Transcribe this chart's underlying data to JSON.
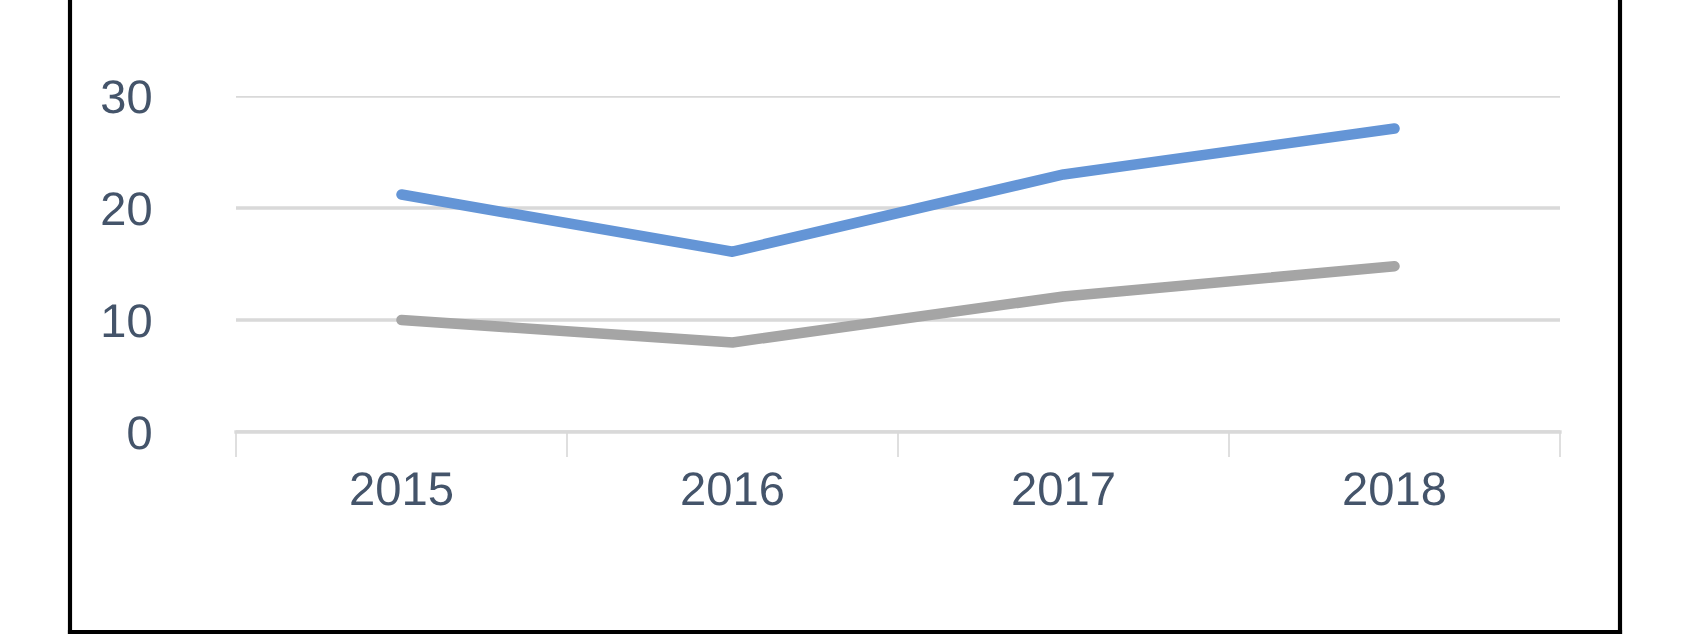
{
  "chart_data": {
    "type": "line",
    "categories": [
      "2015",
      "2016",
      "2017",
      "2018"
    ],
    "series": [
      {
        "color": "#6495d6",
        "values": [
          21.2,
          16.1,
          23,
          27.1
        ]
      },
      {
        "color": "#a5a5a5",
        "values": [
          10,
          8,
          12.1,
          14.8
        ]
      }
    ],
    "ylim": [
      0,
      30
    ],
    "yticks": [
      0,
      10,
      20,
      30
    ],
    "grid": "y",
    "marker": "none",
    "line_style": "solid"
  }
}
